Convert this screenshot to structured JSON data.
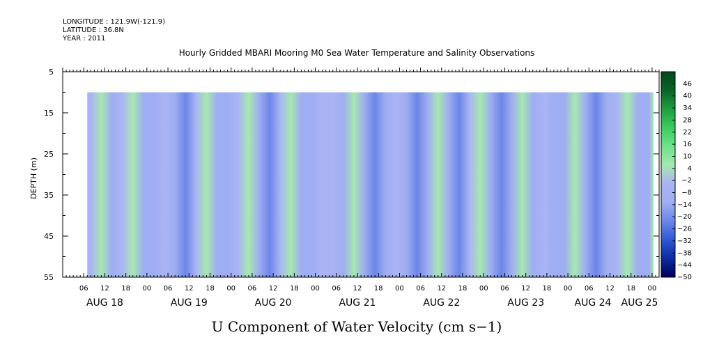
{
  "header": {
    "longitude": "LONGITUDE : 121.9W(-121.9)",
    "latitude": "LATITUDE : 36.8N",
    "year": "YEAR : 2011"
  },
  "chart_data": {
    "type": "heatmap",
    "title": "Hourly Gridded MBARI Mooring M0 Sea Water Temperature and Salinity Observations",
    "xlabel": "U Component of Water Velocity (cm s−1)",
    "ylabel": "DEPTH (m)",
    "ylim": [
      5,
      55
    ],
    "y_inverted": true,
    "yticks": [
      "5",
      "15",
      "25",
      "35",
      "45",
      "55"
    ],
    "xticks_hours": [
      "06",
      "12",
      "18",
      "00",
      "06",
      "12",
      "18",
      "00",
      "06",
      "12",
      "18",
      "00",
      "06",
      "12",
      "18",
      "00",
      "06",
      "12",
      "18",
      "00",
      "06",
      "12",
      "18",
      "00",
      "06",
      "12",
      "18",
      "00"
    ],
    "xticks_days": [
      "AUG 18",
      "AUG 19",
      "AUG 20",
      "AUG 21",
      "AUG 22",
      "AUG 23",
      "AUG 24",
      "AUG 25"
    ],
    "data_depth_range": [
      10,
      55
    ],
    "time_start": "AUG 18 00",
    "time_end": "AUG 25 02",
    "data_time_start": "AUG 18 07",
    "u_velocity_profile": [
      {
        "time": "AUG 18 08",
        "u": -6
      },
      {
        "time": "AUG 18 11",
        "u": 2
      },
      {
        "time": "AUG 18 14",
        "u": -12
      },
      {
        "time": "AUG 18 17",
        "u": -4
      },
      {
        "time": "AUG 18 20",
        "u": 4
      },
      {
        "time": "AUG 18 23",
        "u": -14
      },
      {
        "time": "AUG 19 02",
        "u": -8
      },
      {
        "time": "AUG 19 05",
        "u": -2
      },
      {
        "time": "AUG 19 08",
        "u": -14
      },
      {
        "time": "AUG 19 11",
        "u": -18
      },
      {
        "time": "AUG 19 14",
        "u": -6
      },
      {
        "time": "AUG 19 17",
        "u": 2
      },
      {
        "time": "AUG 19 20",
        "u": -10
      },
      {
        "time": "AUG 19 23",
        "u": -16
      },
      {
        "time": "AUG 20 02",
        "u": -4
      },
      {
        "time": "AUG 20 05",
        "u": 2
      },
      {
        "time": "AUG 20 08",
        "u": -12
      },
      {
        "time": "AUG 20 11",
        "u": -18
      },
      {
        "time": "AUG 20 14",
        "u": -6
      },
      {
        "time": "AUG 20 17",
        "u": 4
      },
      {
        "time": "AUG 20 20",
        "u": -8
      },
      {
        "time": "AUG 20 23",
        "u": -16
      },
      {
        "time": "AUG 21 02",
        "u": -6
      },
      {
        "time": "AUG 21 05",
        "u": -2
      },
      {
        "time": "AUG 21 08",
        "u": -14
      },
      {
        "time": "AUG 21 11",
        "u": 2
      },
      {
        "time": "AUG 21 14",
        "u": -16
      },
      {
        "time": "AUG 21 17",
        "u": -20
      },
      {
        "time": "AUG 21 20",
        "u": -8
      },
      {
        "time": "AUG 21 23",
        "u": -4
      },
      {
        "time": "AUG 22 02",
        "u": -12
      },
      {
        "time": "AUG 22 05",
        "u": -18
      },
      {
        "time": "AUG 22 08",
        "u": -10
      },
      {
        "time": "AUG 22 11",
        "u": 2
      },
      {
        "time": "AUG 22 14",
        "u": -16
      },
      {
        "time": "AUG 22 17",
        "u": -20
      },
      {
        "time": "AUG 22 20",
        "u": -6
      },
      {
        "time": "AUG 22 23",
        "u": 2
      },
      {
        "time": "AUG 23 02",
        "u": -14
      },
      {
        "time": "AUG 23 05",
        "u": -18
      },
      {
        "time": "AUG 23 08",
        "u": -8
      },
      {
        "time": "AUG 23 11",
        "u": 4
      },
      {
        "time": "AUG 23 14",
        "u": -12
      },
      {
        "time": "AUG 23 17",
        "u": -6
      },
      {
        "time": "AUG 23 20",
        "u": -16
      },
      {
        "time": "AUG 23 23",
        "u": -10
      },
      {
        "time": "AUG 24 02",
        "u": 2
      },
      {
        "time": "AUG 24 05",
        "u": -14
      },
      {
        "time": "AUG 24 08",
        "u": -18
      },
      {
        "time": "AUG 24 11",
        "u": -8
      },
      {
        "time": "AUG 24 14",
        "u": -4
      },
      {
        "time": "AUG 24 17",
        "u": 2
      },
      {
        "time": "AUG 24 20",
        "u": -16
      },
      {
        "time": "AUG 24 23",
        "u": -10
      },
      {
        "time": "AUG 25 02",
        "u": 2
      }
    ],
    "colorbar": {
      "labels": [
        "46",
        "40",
        "34",
        "28",
        "22",
        "16",
        "10",
        "4",
        "−2",
        "−8",
        "−14",
        "−20",
        "−26",
        "−32",
        "−38",
        "−44",
        "−50"
      ],
      "values": [
        46,
        40,
        34,
        28,
        22,
        16,
        10,
        4,
        -2,
        -8,
        -14,
        -20,
        -26,
        -32,
        -38,
        -44,
        -50
      ],
      "vmin": -50,
      "vmax": 52,
      "colors_low_to_high": [
        "#00005a",
        "#0e2a9e",
        "#2f58d6",
        "#6b86e8",
        "#9fadf2",
        "#aab4f4",
        "#a6e8b0",
        "#6ee38a",
        "#3ccb5e",
        "#1e9e40",
        "#0a6428",
        "#00461c"
      ]
    }
  }
}
